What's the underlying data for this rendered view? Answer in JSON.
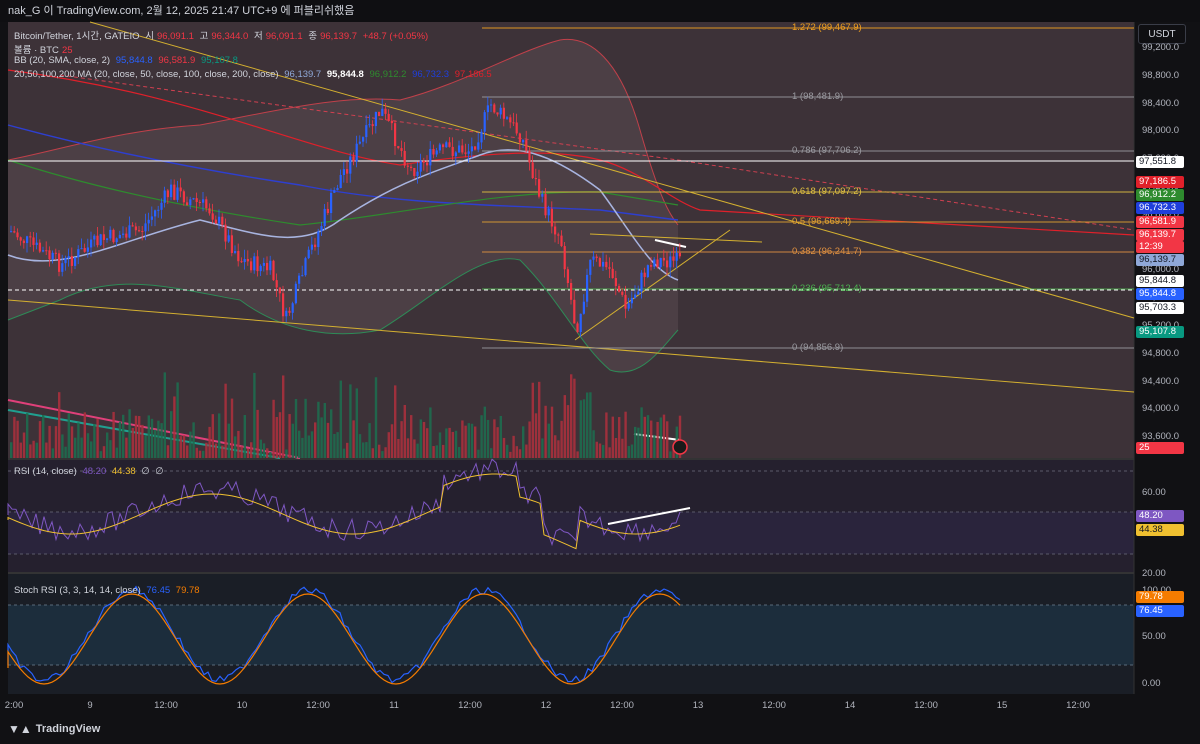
{
  "header": {
    "title": "nak_G 이 TradingView.com, 2월 12, 2025 21:47 UTC+9 에 퍼블리쉬했음"
  },
  "legend": {
    "symbol": "Bitcoin/Tether, 1시간, GATEIO",
    "o_label": "시",
    "o": "96,091.1",
    "h_label": "고",
    "h": "96,344.0",
    "l_label": "저",
    "l": "96,091.1",
    "c_label": "종",
    "c": "96,139.7",
    "chg": "+48.7 (+0.05%)",
    "volume": "볼륨 · BTC",
    "volume_val": "25",
    "bb": "BB (20, SMA, close, 2)",
    "bb_vals": [
      "95,844.8",
      "96,581.9",
      "95,107.8"
    ],
    "ma": "20,50,100,200 MA (20, close, 50, close, 100, close, 200, close)",
    "ma_vals": [
      "96,139.7",
      "95,844.8",
      "96,912.2",
      "96,732.3",
      "97,186.5"
    ],
    "rsi": "RSI (14, close)",
    "rsi_vals": [
      "48.20",
      "44.38",
      "∅",
      "∅"
    ],
    "stoch": "Stoch RSI (3, 3, 14, 14, close)",
    "stoch_vals": [
      "76.45",
      "79.78"
    ]
  },
  "currency": "USDT",
  "price_axis": [
    "99,200.0",
    "98,800.0",
    "98,400.0",
    "98,000.0",
    "97,600.0",
    "97,200.0",
    "96,800.0",
    "96,400.0",
    "96,000.0",
    "95,600.0",
    "95,200.0",
    "94,800.0",
    "94,400.0",
    "94,000.0",
    "93,600.0"
  ],
  "price_tags": [
    {
      "text": "97,551.8",
      "bg": "#ffffff",
      "fg": "#131722"
    },
    {
      "text": "97,186.5",
      "bg": "#e0202a",
      "fg": "#ffffff"
    },
    {
      "text": "96,912.2",
      "bg": "#2e8b2e",
      "fg": "#ffffff"
    },
    {
      "text": "96,732.3",
      "bg": "#1f3fdc",
      "fg": "#ffffff"
    },
    {
      "text": "96,581.9",
      "bg": "#f23645",
      "fg": "#ffffff"
    },
    {
      "text": "96,139.7",
      "bg": "#f23645",
      "fg": "#ffffff"
    },
    {
      "text": "12:39",
      "bg": "#f23645",
      "fg": "#ffffff"
    },
    {
      "text": "96,139.7",
      "bg": "#8fa8d8",
      "fg": "#131722"
    },
    {
      "text": "95,844.8",
      "bg": "#ffffff",
      "fg": "#131722"
    },
    {
      "text": "95,844.8",
      "bg": "#2962ff",
      "fg": "#ffffff"
    },
    {
      "text": "95,703.3",
      "bg": "#ffffff",
      "fg": "#131722"
    },
    {
      "text": "95,107.8",
      "bg": "#089981",
      "fg": "#ffffff"
    },
    {
      "text": "25",
      "bg": "#f23645",
      "fg": "#ffffff"
    }
  ],
  "fib": [
    {
      "label": "1.272 (99,467.9)",
      "color": "#f0a020"
    },
    {
      "label": "1 (98,481.9)",
      "color": "#9a9aa0"
    },
    {
      "label": "0.786 (97,706.2)",
      "color": "#9a9aa0"
    },
    {
      "label": "0.618 (97,097.2)",
      "color": "#e0c040"
    },
    {
      "label": "0.5 (96,669.4)",
      "color": "#e0a030"
    },
    {
      "label": "0.382 (96,241.7)",
      "color": "#e09040"
    },
    {
      "label": "0.236 (95,712.4)",
      "color": "#4caf50"
    },
    {
      "label": "0 (94,856.9)",
      "color": "#9a9aa0"
    }
  ],
  "rsi_axis": [
    "60.00",
    "20.00"
  ],
  "rsi_tags": [
    {
      "text": "48.20",
      "bg": "#7e57c2",
      "fg": "#ffffff"
    },
    {
      "text": "44.38",
      "bg": "#f0c030",
      "fg": "#131722"
    }
  ],
  "stoch_axis": [
    "100.00",
    "50.00",
    "0.00"
  ],
  "stoch_tags": [
    {
      "text": "79.78",
      "bg": "#f57c00",
      "fg": "#ffffff"
    },
    {
      "text": "76.45",
      "bg": "#2962ff",
      "fg": "#ffffff"
    }
  ],
  "time_axis": [
    "2:00",
    "9",
    "12:00",
    "10",
    "12:00",
    "11",
    "12:00",
    "12",
    "12:00",
    "13",
    "12:00",
    "14",
    "12:00",
    "15",
    "12:00"
  ],
  "footer": {
    "brand": "TradingView"
  },
  "colors": {
    "up": "#089981",
    "down": "#f23645",
    "bg": "#131722"
  }
}
